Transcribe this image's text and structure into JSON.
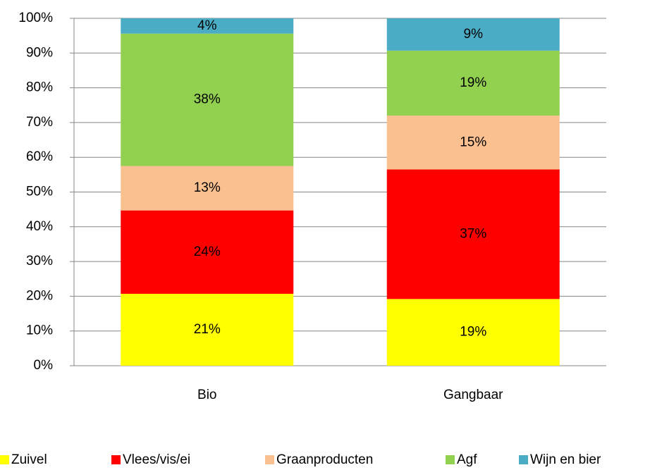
{
  "chart_data": {
    "type": "stacked_bar",
    "categories": [
      "Bio",
      "Gangbaar"
    ],
    "series": [
      {
        "name": "Zuivel",
        "color": "#ffff00",
        "values": [
          20.7,
          19.2
        ],
        "value_labels": [
          "21%",
          "19%"
        ]
      },
      {
        "name": "Vlees/vis/ei",
        "color": "#ff0000",
        "values": [
          24.0,
          37.3
        ],
        "value_labels": [
          "24%",
          "37%"
        ]
      },
      {
        "name": "Graanproducten",
        "color": "#fac090",
        "values": [
          12.8,
          15.5
        ],
        "value_labels": [
          "13%",
          "15%"
        ]
      },
      {
        "name": "Agf",
        "color": "#92d050",
        "values": [
          38.1,
          18.7
        ],
        "value_labels": [
          "38%",
          "19%"
        ]
      },
      {
        "name": "Wijn en bier",
        "color": "#4bacc6",
        "values": [
          4.4,
          9.3
        ],
        "value_labels": [
          "4%",
          "9%"
        ]
      }
    ],
    "ylim": [
      0,
      100
    ],
    "yticks": [
      {
        "value": 0,
        "label": "0%"
      },
      {
        "value": 10,
        "label": "10%"
      },
      {
        "value": 20,
        "label": "20%"
      },
      {
        "value": 30,
        "label": "30%"
      },
      {
        "value": 40,
        "label": "40%"
      },
      {
        "value": 50,
        "label": "50%"
      },
      {
        "value": 60,
        "label": "60%"
      },
      {
        "value": 70,
        "label": "70%"
      },
      {
        "value": 80,
        "label": "80%"
      },
      {
        "value": 90,
        "label": "90%"
      },
      {
        "value": 100,
        "label": "100%"
      }
    ],
    "grid": true,
    "legend": "bottom"
  }
}
